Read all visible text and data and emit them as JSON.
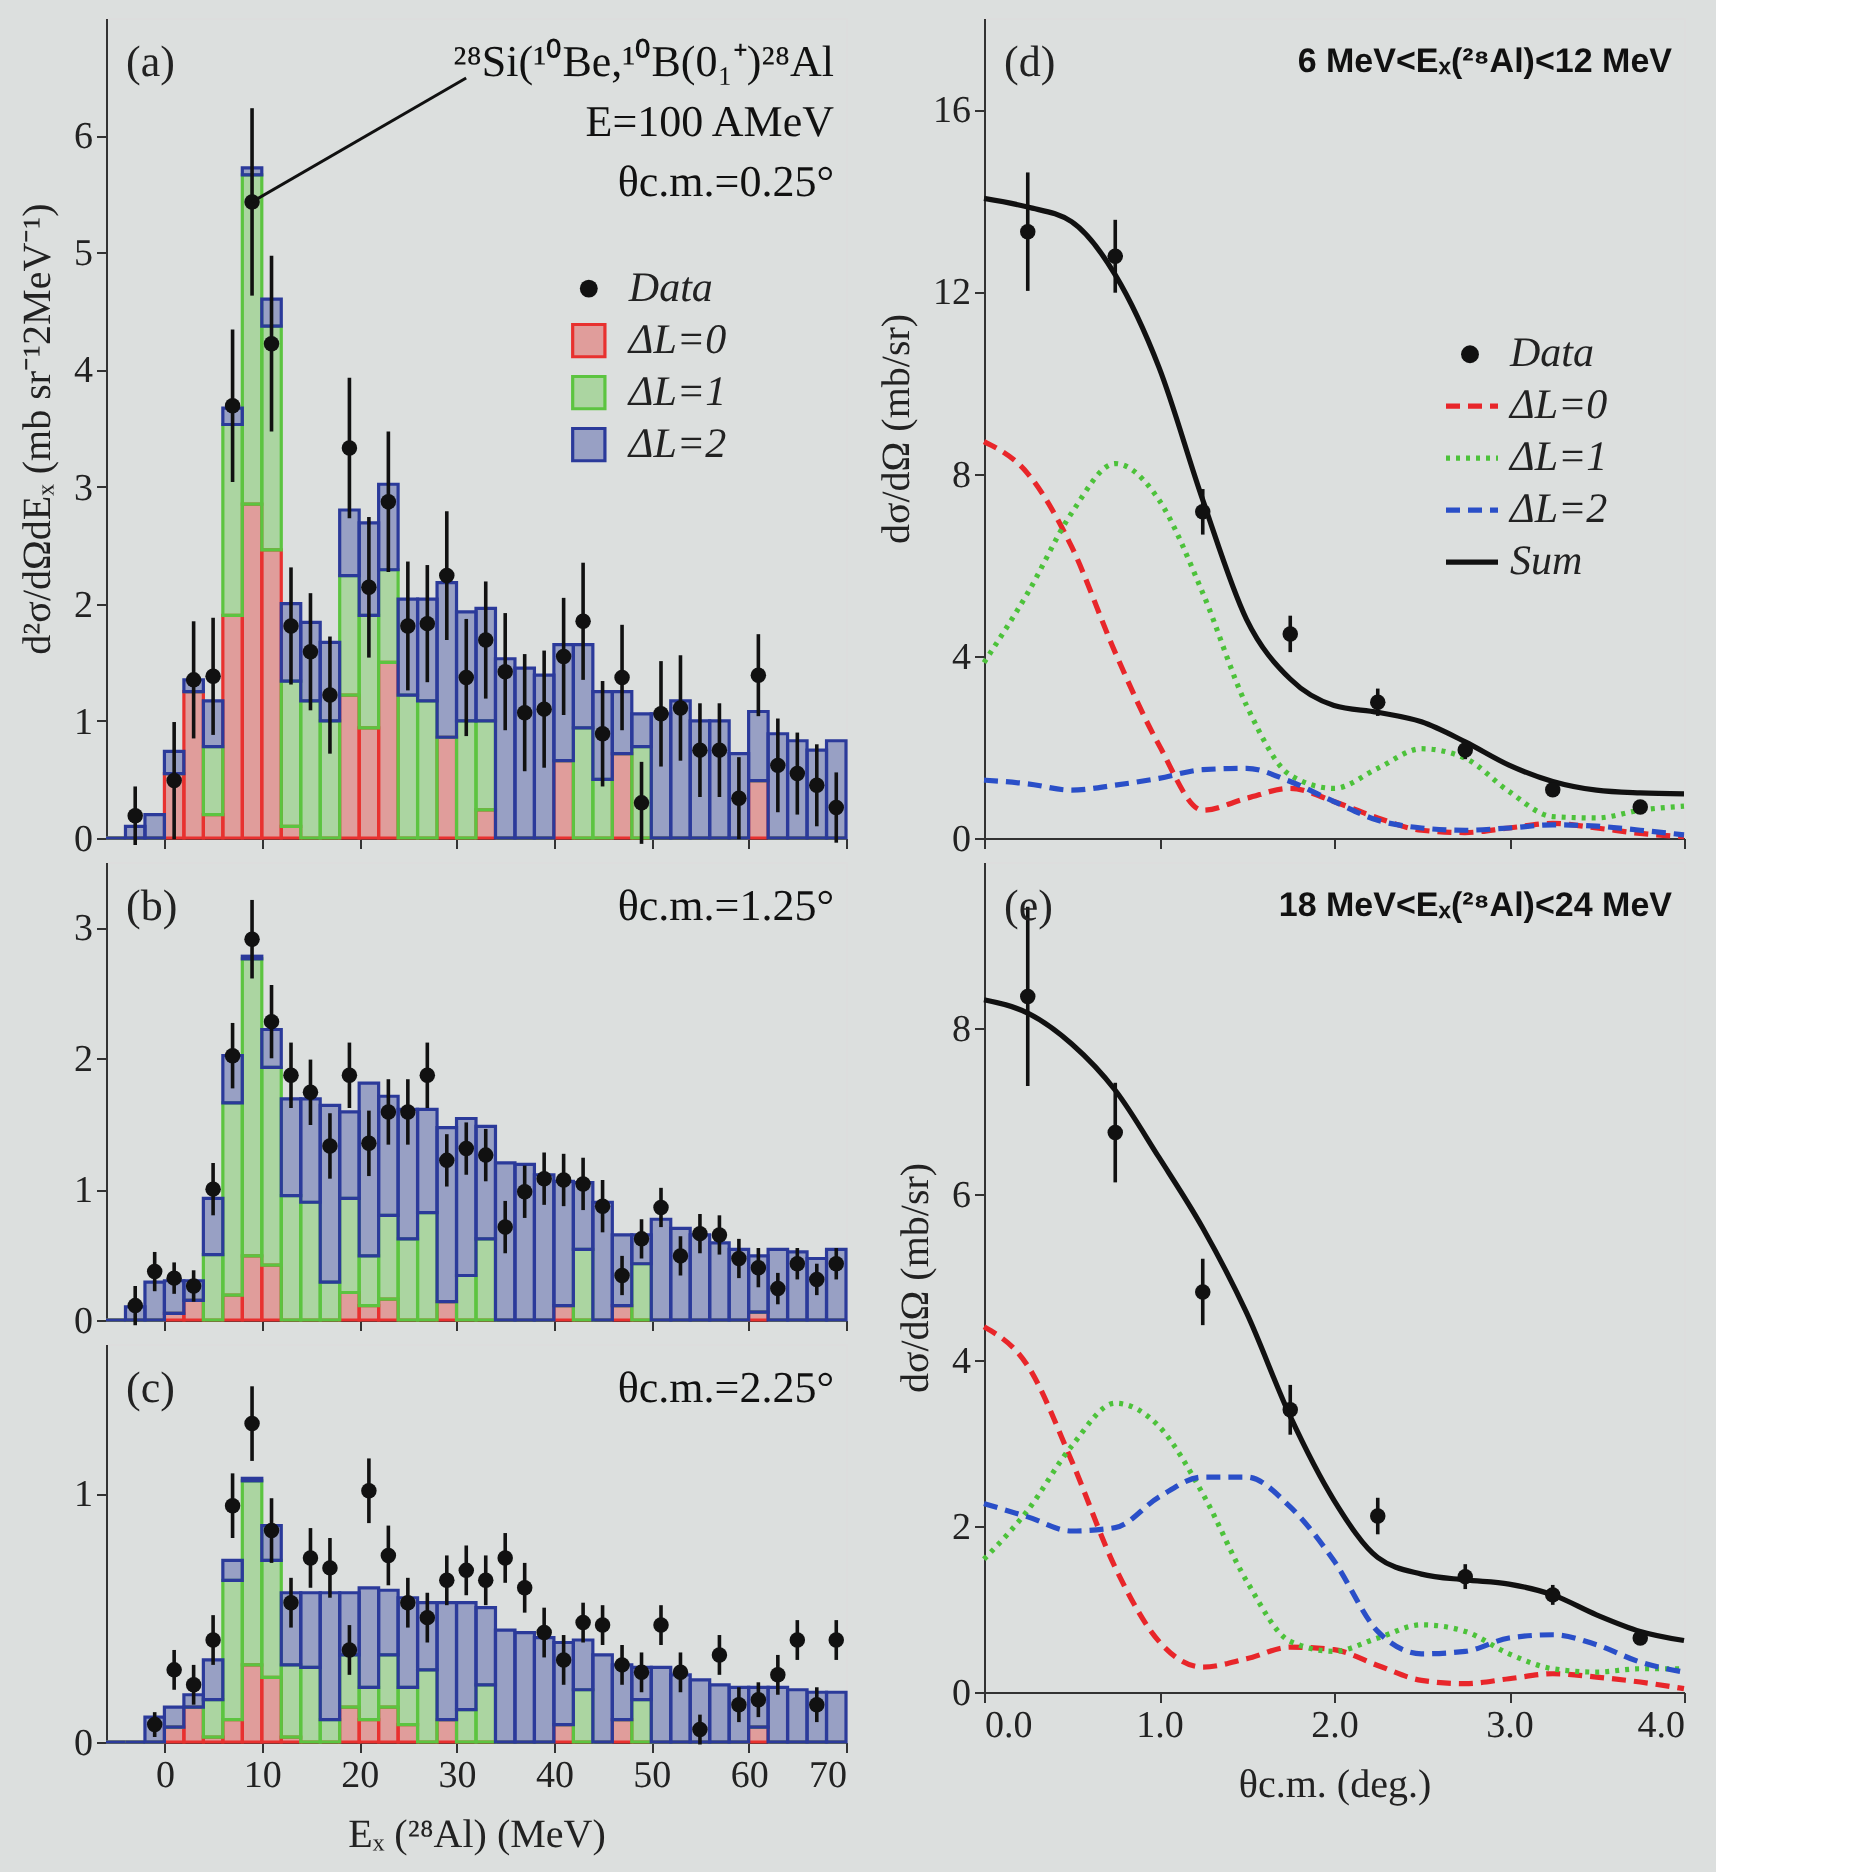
{
  "chart_data": [
    {
      "type": "bar",
      "stacked": true,
      "legend": "top right",
      "tick_labels": "y",
      "ylabel": "d²σ/dΩdEₓ (mb sr⁻¹2MeV⁻¹)",
      "xlim": [
        -6,
        70
      ],
      "xticks": [
        0,
        10,
        20,
        30,
        40,
        50,
        60,
        70
      ],
      "ylim": [
        0,
        7
      ],
      "yticks": [
        0,
        1,
        2,
        3,
        4,
        5,
        6
      ],
      "annotations": [
        "(a)",
        {
          "text": "²⁸Si(¹⁰Be,¹⁰B(0₁⁺)²⁸Al",
          "x": 9,
          "y": 5.43
        },
        "E=100 AMeV",
        "θc.m.=0.25°"
      ],
      "x": [
        -5,
        -3,
        -1,
        1,
        3,
        5,
        7,
        9,
        11,
        13,
        15,
        17,
        19,
        21,
        23,
        25,
        27,
        29,
        31,
        33,
        35,
        37,
        39,
        41,
        43,
        45,
        47,
        49,
        51,
        53,
        55,
        57,
        59,
        61,
        63,
        65,
        67,
        69
      ],
      "series": [
        {
          "name": "Data",
          "type": "scatter",
          "marker": "circle",
          "color": "#111111",
          "x": [
            -3,
            1,
            3,
            5,
            7,
            9,
            11,
            13,
            15,
            17,
            19,
            21,
            23,
            25,
            27,
            29,
            31,
            33,
            35,
            37,
            39,
            41,
            43,
            45,
            47,
            49,
            51,
            53,
            55,
            57,
            59,
            61,
            63,
            65,
            67,
            69
          ],
          "values": [
            0.19,
            0.49,
            1.35,
            1.38,
            3.69,
            5.43,
            4.22,
            1.81,
            1.59,
            1.22,
            3.33,
            2.14,
            2.87,
            1.81,
            1.83,
            2.24,
            1.37,
            1.69,
            1.42,
            1.07,
            1.1,
            1.55,
            1.85,
            0.89,
            1.37,
            0.3,
            1.06,
            1.11,
            0.75,
            0.75,
            0.34,
            1.39,
            0.62,
            0.55,
            0.45,
            0.26
          ],
          "errors": [
            0.25,
            0.5,
            0.5,
            0.5,
            0.65,
            0.8,
            0.75,
            0.5,
            0.5,
            0.5,
            0.6,
            0.6,
            0.6,
            0.55,
            0.5,
            0.55,
            0.5,
            0.5,
            0.5,
            0.5,
            0.5,
            0.5,
            0.5,
            0.45,
            0.45,
            0.35,
            0.45,
            0.45,
            0.4,
            0.4,
            0.35,
            0.35,
            0.4,
            0.35,
            0.35,
            0.3
          ]
        },
        {
          "name": "ΔL=0",
          "color": "#e8312f",
          "values": [
            0,
            0,
            0,
            0.55,
            1.25,
            0.2,
            1.9,
            2.85,
            2.46,
            0.1,
            0,
            0,
            1.22,
            0.94,
            1.5,
            0,
            0,
            0.86,
            0,
            0.24,
            0,
            0,
            0,
            0.66,
            0,
            0,
            0.72,
            0,
            0,
            0,
            0,
            0,
            0,
            0.49,
            0,
            0,
            0,
            0
          ]
        },
        {
          "name": "ΔL=1",
          "color": "#5cc440",
          "values": [
            0,
            0,
            0,
            0,
            0,
            0.58,
            1.63,
            2.81,
            1.91,
            1.24,
            1.17,
            1.0,
            1.02,
            0.96,
            0.79,
            1.22,
            1.17,
            0,
            1.0,
            0.76,
            0,
            0,
            0,
            0,
            0.94,
            0.5,
            0,
            0.78,
            0,
            0,
            0,
            0,
            0,
            0,
            0,
            0,
            0,
            0
          ]
        },
        {
          "name": "ΔL=2",
          "color": "#2b3a9a",
          "values": [
            0,
            0.1,
            0.2,
            0.19,
            0.1,
            0.39,
            0.14,
            0.06,
            0.23,
            0.66,
            0.67,
            0.67,
            0.56,
            0.79,
            0.73,
            0.82,
            0.87,
            1.32,
            0.93,
            0.96,
            1.53,
            1.45,
            1.39,
            0.99,
            0.71,
            0.75,
            0.53,
            0.28,
            1.06,
            1.17,
            1.0,
            1.0,
            0.72,
            0.59,
            0.89,
            0.83,
            0.75,
            0.83
          ]
        }
      ]
    },
    {
      "type": "bar",
      "stacked": true,
      "tick_labels": "y",
      "xlim": [
        -6,
        70
      ],
      "xticks": [
        0,
        10,
        20,
        30,
        40,
        50,
        60,
        70
      ],
      "ylim": [
        0,
        3.5
      ],
      "yticks": [
        0,
        1,
        2,
        3
      ],
      "annotations": [
        "(b)",
        "θc.m.=1.25°"
      ],
      "x": [
        -5,
        -3,
        -1,
        1,
        3,
        5,
        7,
        9,
        11,
        13,
        15,
        17,
        19,
        21,
        23,
        25,
        27,
        29,
        31,
        33,
        35,
        37,
        39,
        41,
        43,
        45,
        47,
        49,
        51,
        53,
        55,
        57,
        59,
        61,
        63,
        65,
        67,
        69
      ],
      "series": [
        {
          "type": "scatter",
          "marker": "circle",
          "color": "#111111",
          "x": [
            -3,
            -1,
            1,
            3,
            5,
            7,
            9,
            11,
            13,
            15,
            17,
            19,
            21,
            23,
            25,
            27,
            29,
            31,
            33,
            35,
            37,
            39,
            41,
            43,
            45,
            47,
            49,
            51,
            53,
            55,
            57,
            59,
            61,
            63,
            65,
            67,
            69
          ],
          "values": [
            0.11,
            0.37,
            0.32,
            0.26,
            1.0,
            2.02,
            2.91,
            2.28,
            1.87,
            1.74,
            1.33,
            1.87,
            1.35,
            1.59,
            1.59,
            1.87,
            1.22,
            1.31,
            1.26,
            0.71,
            0.98,
            1.08,
            1.07,
            1.04,
            0.87,
            0.34,
            0.62,
            0.86,
            0.49,
            0.66,
            0.65,
            0.47,
            0.4,
            0.24,
            0.43,
            0.31,
            0.43
          ],
          "errors": [
            0.15,
            0.15,
            0.12,
            0.12,
            0.2,
            0.25,
            0.3,
            0.28,
            0.25,
            0.25,
            0.25,
            0.25,
            0.25,
            0.25,
            0.25,
            0.25,
            0.2,
            0.2,
            0.2,
            0.2,
            0.2,
            0.2,
            0.2,
            0.2,
            0.2,
            0.15,
            0.15,
            0.15,
            0.15,
            0.15,
            0.15,
            0.15,
            0.15,
            0.12,
            0.12,
            0.12,
            0.12
          ]
        },
        {
          "color": "#e8312f",
          "values": [
            0,
            0,
            0,
            0.05,
            0.15,
            0,
            0.19,
            0.49,
            0.42,
            0,
            0,
            0,
            0.21,
            0.11,
            0.16,
            0,
            0,
            0.14,
            0,
            0,
            0,
            0,
            0,
            0.11,
            0,
            0,
            0.11,
            0,
            0,
            0,
            0,
            0,
            0,
            0.06,
            0,
            0,
            0,
            0
          ]
        },
        {
          "color": "#5cc440",
          "values": [
            0,
            0,
            0,
            0,
            0,
            0.5,
            1.47,
            2.27,
            1.51,
            0.95,
            0.9,
            0.29,
            0.72,
            0.38,
            0.64,
            0.62,
            0.82,
            0,
            0.34,
            0.62,
            0,
            0,
            0,
            0,
            0.54,
            0,
            0,
            0.43,
            0,
            0,
            0,
            0,
            0,
            0,
            0,
            0,
            0,
            0
          ]
        },
        {
          "color": "#2b3a9a",
          "values": [
            0,
            0.1,
            0.29,
            0.25,
            0.15,
            0.43,
            0.36,
            0.02,
            0.29,
            0.74,
            0.79,
            1.35,
            0.66,
            1.32,
            0.91,
            0.99,
            0.79,
            1.33,
            1.2,
            0.86,
            1.2,
            1.19,
            1.11,
            0.95,
            0.51,
            0.9,
            0.54,
            0.22,
            0.77,
            0.7,
            0.65,
            0.59,
            0.54,
            0.43,
            0.54,
            0.52,
            0.47,
            0.54
          ]
        }
      ]
    },
    {
      "type": "bar",
      "stacked": true,
      "xlabel": "Eₓ (²⁸Al) (MeV)",
      "xlim": [
        -6,
        70
      ],
      "xticks": [
        0,
        10,
        20,
        30,
        40,
        50,
        60,
        70
      ],
      "ylim": [
        0,
        1.6
      ],
      "yticks": [
        0,
        1
      ],
      "annotations": [
        "(c)",
        "θc.m.=2.25°"
      ],
      "x": [
        -5,
        -3,
        -1,
        1,
        3,
        5,
        7,
        9,
        11,
        13,
        15,
        17,
        19,
        21,
        23,
        25,
        27,
        29,
        31,
        33,
        35,
        37,
        39,
        41,
        43,
        45,
        47,
        49,
        51,
        53,
        55,
        57,
        59,
        61,
        63,
        65,
        67,
        69
      ],
      "series": [
        {
          "type": "scatter",
          "marker": "circle",
          "color": "#111111",
          "x": [
            -1,
            1,
            3,
            5,
            7,
            9,
            11,
            13,
            15,
            17,
            19,
            21,
            23,
            25,
            27,
            29,
            31,
            33,
            35,
            37,
            39,
            41,
            43,
            45,
            47,
            49,
            51,
            53,
            55,
            57,
            59,
            61,
            63,
            65,
            67,
            69
          ],
          "values": [
            0.07,
            0.29,
            0.23,
            0.41,
            0.95,
            1.28,
            0.85,
            0.56,
            0.74,
            0.7,
            0.37,
            1.01,
            0.75,
            0.56,
            0.5,
            0.65,
            0.69,
            0.65,
            0.74,
            0.62,
            0.44,
            0.33,
            0.48,
            0.47,
            0.31,
            0.28,
            0.47,
            0.28,
            0.05,
            0.35,
            0.15,
            0.17,
            0.27,
            0.41,
            0.15,
            0.41
          ],
          "errors": [
            0.05,
            0.08,
            0.08,
            0.1,
            0.13,
            0.15,
            0.13,
            0.1,
            0.12,
            0.12,
            0.1,
            0.13,
            0.12,
            0.1,
            0.1,
            0.1,
            0.1,
            0.1,
            0.1,
            0.1,
            0.1,
            0.1,
            0.08,
            0.08,
            0.08,
            0.08,
            0.08,
            0.08,
            0.06,
            0.08,
            0.07,
            0.07,
            0.08,
            0.08,
            0.07,
            0.08
          ]
        },
        {
          "color": "#e8312f",
          "values": [
            0,
            0,
            0,
            0.06,
            0.14,
            0.02,
            0.09,
            0.31,
            0.26,
            0.02,
            0,
            0,
            0.14,
            0.09,
            0.14,
            0.07,
            0,
            0.09,
            0,
            0,
            0,
            0,
            0,
            0.07,
            0,
            0,
            0.09,
            0,
            0,
            0,
            0,
            0,
            0,
            0.06,
            0,
            0,
            0,
            0
          ]
        },
        {
          "color": "#5cc440",
          "values": [
            0,
            0,
            0,
            0,
            0,
            0.15,
            0.56,
            0.74,
            0.47,
            0.29,
            0.3,
            0.09,
            0.21,
            0.13,
            0.21,
            0.15,
            0.29,
            0,
            0.13,
            0.23,
            0,
            0,
            0,
            0,
            0.21,
            0,
            0,
            0.17,
            0,
            0,
            0,
            0,
            0,
            0,
            0,
            0,
            0,
            0
          ]
        },
        {
          "color": "#2b3a9a",
          "values": [
            0,
            0,
            0.1,
            0.08,
            0.05,
            0.16,
            0.08,
            0.01,
            0.14,
            0.29,
            0.3,
            0.51,
            0.25,
            0.4,
            0.26,
            0.36,
            0.27,
            0.47,
            0.43,
            0.31,
            0.45,
            0.44,
            0.42,
            0.33,
            0.2,
            0.35,
            0.22,
            0.13,
            0.3,
            0.27,
            0.25,
            0.23,
            0.22,
            0.16,
            0.22,
            0.21,
            0.2,
            0.2
          ]
        }
      ]
    },
    {
      "type": "line",
      "legend": "right",
      "tick_labels": "y",
      "ylabel": "dσ/dΩ (mb/sr)",
      "xlim": [
        0,
        4
      ],
      "xticks": [
        0,
        1,
        2,
        3,
        4
      ],
      "ylim": [
        0,
        18
      ],
      "yticks": [
        0,
        4,
        8,
        12,
        16
      ],
      "annotations": [
        "(d)",
        "6 MeV<Eₓ(²⁸Al)<12 MeV"
      ],
      "x": [
        0,
        0.25,
        0.5,
        0.75,
        1.0,
        1.25,
        1.5,
        1.75,
        2.0,
        2.25,
        2.5,
        2.75,
        3.0,
        3.25,
        3.5,
        3.75,
        4.0
      ],
      "series": [
        {
          "name": "Data",
          "type": "scatter",
          "marker": "circle",
          "color": "#111111",
          "x": [
            0.25,
            0.75,
            1.25,
            1.75,
            2.25,
            2.75,
            3.25,
            3.75
          ],
          "values": [
            13.31,
            12.77,
            7.16,
            4.48,
            2.98,
            1.93,
            1.06,
            0.68
          ],
          "errors": [
            1.3,
            0.8,
            0.5,
            0.4,
            0.3,
            0.2,
            0.15,
            0.1
          ]
        },
        {
          "name": "ΔL=0",
          "color": "#e8262a",
          "line_style": "dashed",
          "marker": "none",
          "values": [
            8.7,
            8.0,
            6.4,
            4.07,
            2.04,
            0.61,
            0.87,
            1.09,
            0.8,
            0.44,
            0.17,
            0.12,
            0.22,
            0.32,
            0.22,
            0.1,
            0.03
          ]
        },
        {
          "name": "ΔL=1",
          "color": "#4cc23a",
          "line_style": "dotted",
          "marker": "none",
          "values": [
            3.85,
            5.38,
            7.13,
            8.22,
            7.42,
            5.38,
            2.91,
            1.38,
            1.09,
            1.53,
            1.96,
            1.75,
            1.02,
            0.47,
            0.44,
            0.61,
            0.7
          ]
        },
        {
          "name": "ΔL=2",
          "color": "#2a4fc8",
          "line_style": "dashed",
          "marker": "none",
          "values": [
            1.27,
            1.19,
            1.05,
            1.16,
            1.31,
            1.5,
            1.53,
            1.24,
            0.8,
            0.39,
            0.22,
            0.17,
            0.22,
            0.29,
            0.26,
            0.17,
            0.07
          ]
        },
        {
          "name": "Sum",
          "color": "#111111",
          "line_style": "solid",
          "marker": "none",
          "values": [
            14.04,
            13.85,
            13.53,
            12.36,
            10.33,
            7.42,
            4.8,
            3.49,
            2.91,
            2.76,
            2.55,
            2.11,
            1.6,
            1.24,
            1.05,
            0.99,
            0.97
          ]
        }
      ]
    },
    {
      "type": "line",
      "xlabel": "θc.m. (deg.)",
      "ylabel": "dσ/dΩ (mb/sr)",
      "xlim": [
        0,
        4
      ],
      "xticks": [
        {
          "value": 0,
          "label": "0.0"
        },
        {
          "value": 1,
          "label": "1.0"
        },
        {
          "value": 2,
          "label": "2.0"
        },
        {
          "value": 3,
          "label": "3.0"
        },
        {
          "value": 4,
          "label": "4.0"
        }
      ],
      "ylim": [
        0,
        10
      ],
      "yticks": [
        0,
        2,
        4,
        6,
        8
      ],
      "annotations": [
        "(e)",
        "18 MeV<Eₓ(²⁸Al)<24 MeV"
      ],
      "x": [
        0,
        0.25,
        0.5,
        0.75,
        1.0,
        1.25,
        1.5,
        1.75,
        2.0,
        2.25,
        2.5,
        2.75,
        3.0,
        3.25,
        3.5,
        3.75,
        4.0
      ],
      "series": [
        {
          "type": "scatter",
          "marker": "circle",
          "color": "#111111",
          "x": [
            0.25,
            0.75,
            1.25,
            1.75,
            2.25,
            2.75,
            3.25,
            3.75
          ],
          "values": [
            8.38,
            6.74,
            4.82,
            3.4,
            2.12,
            1.39,
            1.17,
            0.65
          ],
          "errors": [
            1.08,
            0.6,
            0.4,
            0.3,
            0.22,
            0.15,
            0.12,
            0.08
          ]
        },
        {
          "color": "#e8262a",
          "line_style": "dashed",
          "marker": "none",
          "values": [
            4.4,
            3.93,
            2.79,
            1.5,
            0.61,
            0.3,
            0.4,
            0.54,
            0.51,
            0.32,
            0.14,
            0.1,
            0.16,
            0.22,
            0.18,
            0.12,
            0.04
          ]
        },
        {
          "color": "#4cc23a",
          "line_style": "dotted",
          "marker": "none",
          "values": [
            1.6,
            2.19,
            2.96,
            3.48,
            3.2,
            2.39,
            1.34,
            0.61,
            0.49,
            0.65,
            0.81,
            0.73,
            0.46,
            0.28,
            0.24,
            0.28,
            0.28
          ]
        },
        {
          "color": "#2a4fc8",
          "line_style": "dashed",
          "marker": "none",
          "values": [
            2.27,
            2.11,
            1.94,
            1.98,
            2.35,
            2.59,
            2.59,
            2.23,
            1.58,
            0.73,
            0.46,
            0.49,
            0.65,
            0.69,
            0.57,
            0.36,
            0.24
          ]
        },
        {
          "color": "#111111",
          "line_style": "solid",
          "marker": "none",
          "values": [
            8.34,
            8.18,
            7.81,
            7.25,
            6.44,
            5.59,
            4.57,
            3.32,
            2.31,
            1.62,
            1.42,
            1.35,
            1.3,
            1.17,
            0.93,
            0.73,
            0.62
          ]
        }
      ]
    }
  ]
}
